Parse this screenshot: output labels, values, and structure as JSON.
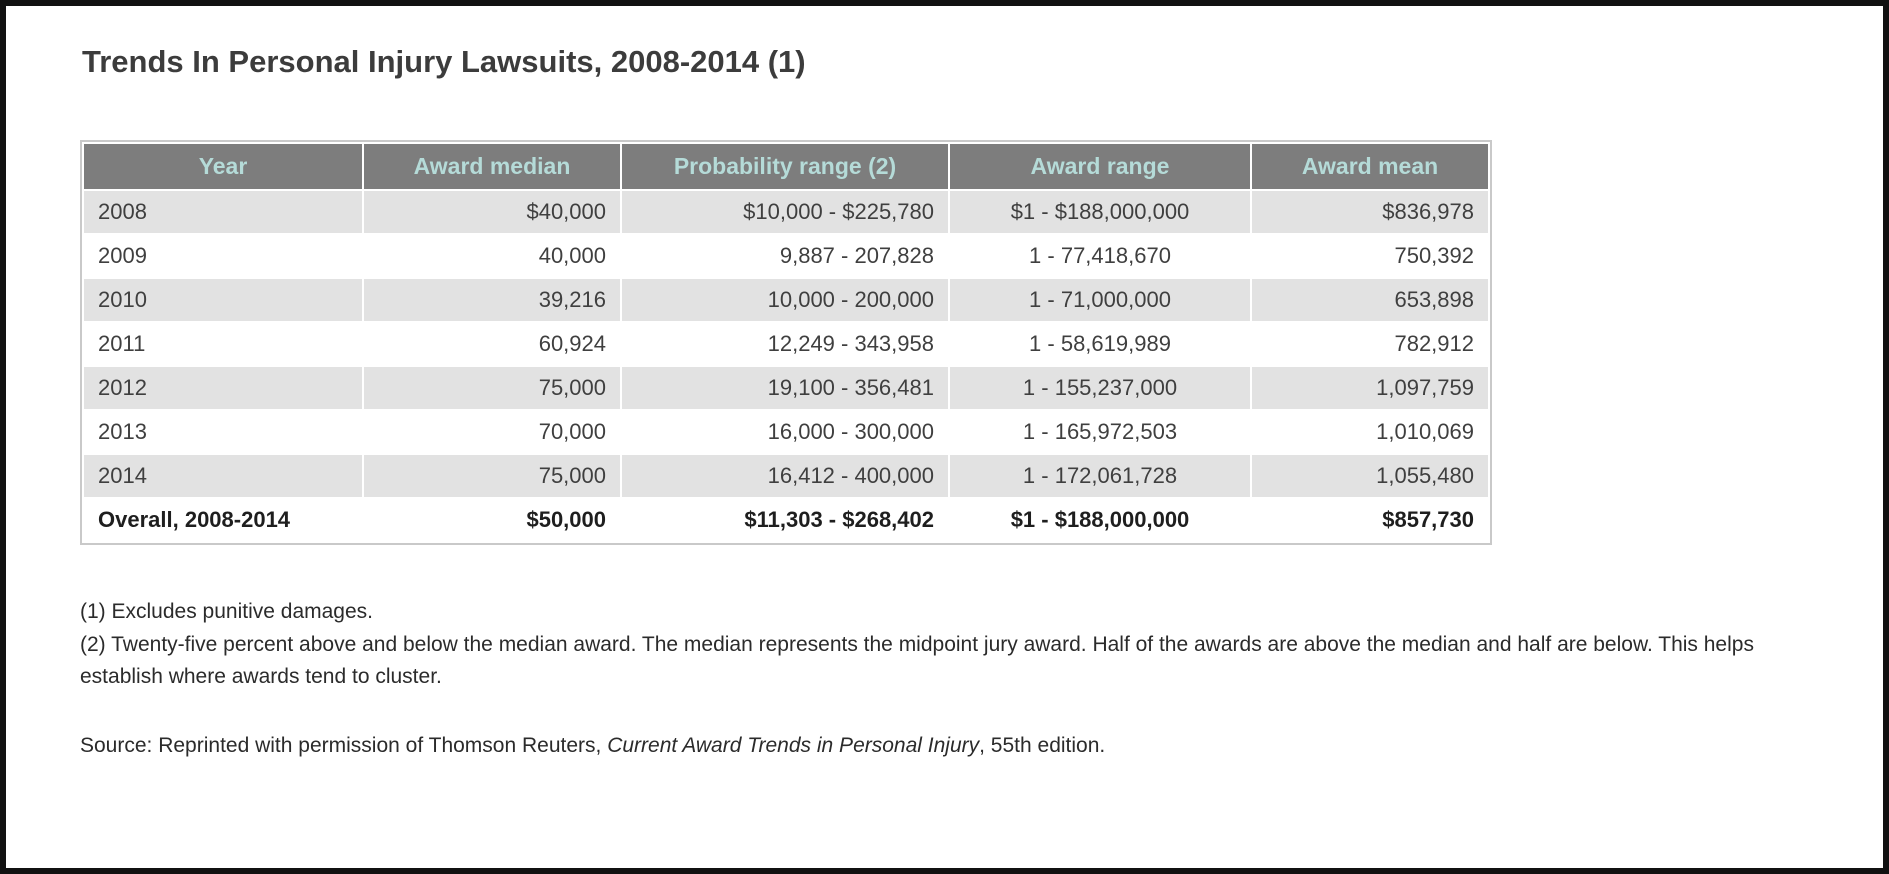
{
  "chart_data": {
    "type": "table",
    "title": "Trends In Personal Injury Lawsuits, 2008-2014 (1)",
    "columns": [
      "Year",
      "Award median",
      "Probability range (2)",
      "Award range",
      "Award mean"
    ],
    "rows": [
      [
        "2008",
        "$40,000",
        "$10,000 - $225,780",
        "$1 - $188,000,000",
        "$836,978"
      ],
      [
        "2009",
        "40,000",
        "9,887 - 207,828",
        "1 - 77,418,670",
        "750,392"
      ],
      [
        "2010",
        "39,216",
        "10,000 - 200,000",
        "1 - 71,000,000",
        "653,898"
      ],
      [
        "2011",
        "60,924",
        "12,249 - 343,958",
        "1 - 58,619,989",
        "782,912"
      ],
      [
        "2012",
        "75,000",
        "19,100 - 356,481",
        "1 - 155,237,000",
        "1,097,759"
      ],
      [
        "2013",
        "70,000",
        "16,000 - 300,000",
        "1 - 165,972,503",
        "1,010,069"
      ],
      [
        "2014",
        "75,000",
        "16,412 - 400,000",
        "1 - 172,061,728",
        "1,055,480"
      ]
    ],
    "total_row": [
      "Overall, 2008-2014",
      "$50,000",
      "$11,303 - $268,402",
      "$1 - $188,000,000",
      "$857,730"
    ]
  },
  "footnotes": [
    "(1) Excludes punitive damages.",
    "(2) Twenty-five percent above and below the median award. The median represents the midpoint jury award. Half of the awards are above the median and half are below. This helps establish where awards tend to cluster."
  ],
  "source": {
    "prefix": "Source: Reprinted with permission of Thomson Reuters, ",
    "italic": "Current Award Trends in Personal Injury",
    "suffix": ", 55th edition."
  },
  "colors": {
    "header_bg": "#7d7d7d",
    "header_text": "#b5dbd8",
    "row_alt_bg": "#e2e2e2",
    "row_bg": "#ffffff",
    "frame_border": "#111111",
    "table_border": "#c9c9c9"
  }
}
